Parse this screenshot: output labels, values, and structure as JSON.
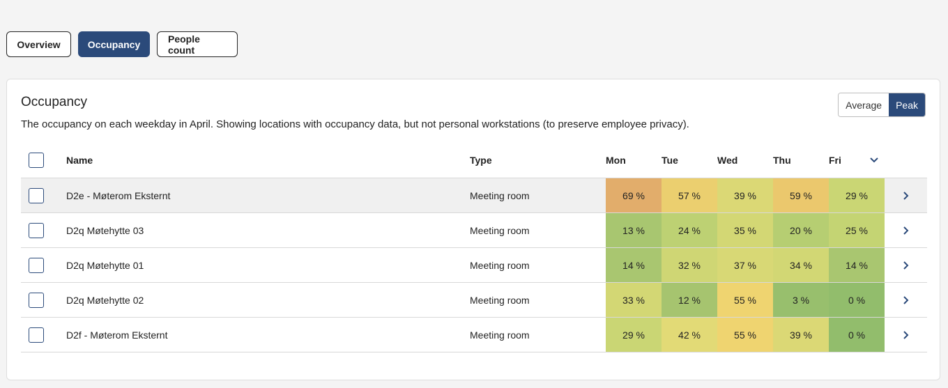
{
  "tabs": [
    {
      "label": "Overview",
      "active": false
    },
    {
      "label": "Occupancy",
      "active": true
    },
    {
      "label": "People count",
      "active": false
    }
  ],
  "card": {
    "title": "Occupancy",
    "description": "The occupancy on each weekday in April. Showing locations with occupancy data, but not personal workstations (to preserve employee privacy).",
    "toggle": {
      "average": "Average",
      "peak": "Peak",
      "selected": "Peak"
    }
  },
  "table": {
    "headers": {
      "name": "Name",
      "type": "Type",
      "days": [
        "Mon",
        "Tue",
        "Wed",
        "Thu",
        "Fri"
      ]
    },
    "rows": [
      {
        "name": "D2e - Møterom Eksternt",
        "type": "Meeting room",
        "values": [
          "69 %",
          "57 %",
          "39 %",
          "59 %",
          "29 %"
        ],
        "colors": [
          "#e2ad6b",
          "#ebcf6f",
          "#dbd875",
          "#ebc86d",
          "#cad674"
        ],
        "highlighted": true
      },
      {
        "name": "D2q Møtehytte 03",
        "type": "Meeting room",
        "values": [
          "13 %",
          "24 %",
          "35 %",
          "20 %",
          "25 %"
        ],
        "colors": [
          "#a8c670",
          "#bdd173",
          "#d3d774",
          "#b6ce72",
          "#c4d473"
        ],
        "highlighted": false
      },
      {
        "name": "D2q Møtehytte 01",
        "type": "Meeting room",
        "values": [
          "14 %",
          "32 %",
          "37 %",
          "34 %",
          "14 %"
        ],
        "colors": [
          "#a9c670",
          "#cfd674",
          "#d8d875",
          "#d2d774",
          "#a9c670"
        ],
        "highlighted": false
      },
      {
        "name": "D2q Møtehytte 02",
        "type": "Meeting room",
        "values": [
          "33 %",
          "12 %",
          "55 %",
          "3 %",
          "0 %"
        ],
        "colors": [
          "#d3d774",
          "#a6c46f",
          "#efd470",
          "#98bf6d",
          "#92bd6c"
        ],
        "highlighted": false
      },
      {
        "name": "D2f - Møterom Eksternt",
        "type": "Meeting room",
        "values": [
          "29 %",
          "42 %",
          "55 %",
          "39 %",
          "0 %"
        ],
        "colors": [
          "#cad674",
          "#e2da76",
          "#efd470",
          "#dbd875",
          "#92bd6c"
        ],
        "highlighted": false
      }
    ]
  },
  "icons": {
    "row_chevron": "chevron-right-icon",
    "header_chevron": "chevron-down-icon",
    "accent": "#2b4a7a"
  }
}
